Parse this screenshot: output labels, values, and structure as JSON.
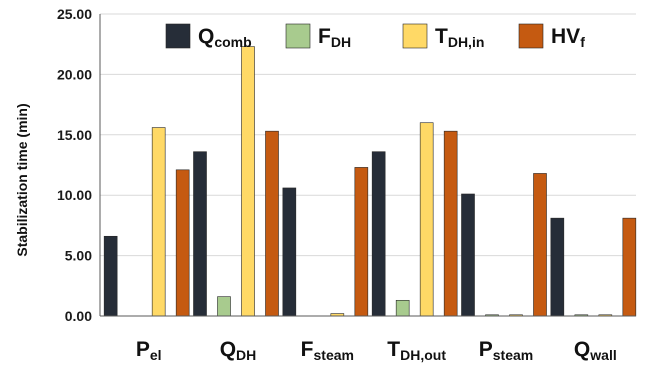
{
  "chart_data": {
    "type": "bar",
    "title": "",
    "xlabel": "",
    "ylabel": "Stabilization time (min)",
    "ylim": [
      0,
      25
    ],
    "yticks": [
      "0.00",
      "5.00",
      "10.00",
      "15.00",
      "20.00",
      "25.00"
    ],
    "grid": true,
    "legend_position": "top",
    "categories": [
      {
        "main": "P",
        "sub": "el"
      },
      {
        "main": "Q",
        "sub": "DH"
      },
      {
        "main": "F",
        "sub": "steam"
      },
      {
        "main": "T",
        "sub": "DH,out"
      },
      {
        "main": "P",
        "sub": "steam"
      },
      {
        "main": "Q",
        "sub": "wall"
      }
    ],
    "series": [
      {
        "main": "Q",
        "sub": "comb",
        "color": "#262d38",
        "values": [
          6.6,
          13.6,
          10.6,
          13.6,
          10.1,
          8.1
        ]
      },
      {
        "main": "F",
        "sub": "DH",
        "color": "#a8cb8e",
        "values": [
          0,
          1.6,
          0,
          1.3,
          0.1,
          0.1
        ]
      },
      {
        "main": "T",
        "sub": "DH,in",
        "color": "#ffd966",
        "values": [
          15.6,
          22.3,
          0.2,
          16.0,
          0.1,
          0.1
        ]
      },
      {
        "main": "HV",
        "sub": "f",
        "color": "#c55a11",
        "values": [
          12.1,
          15.3,
          12.3,
          15.3,
          11.8,
          8.1
        ]
      }
    ]
  }
}
